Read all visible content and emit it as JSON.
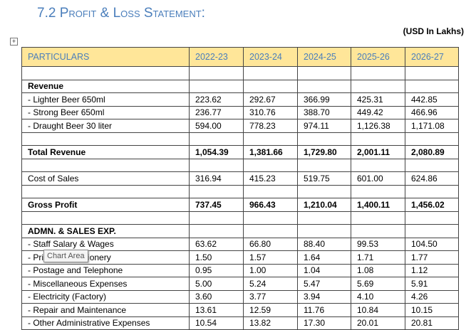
{
  "header": {
    "title": "7.2 Profit & Loss Statement:",
    "unit": "(USD In Lakhs)"
  },
  "tooltip": "Chart Area",
  "table": {
    "columns": [
      "PARTICULARS",
      "2022-23",
      "2023-24",
      "2024-25",
      "2025-26",
      "2026-27"
    ],
    "rows": [
      null,
      {
        "label": "Revenue",
        "bold": true
      },
      {
        "label": "- Lighter Beer 650ml",
        "values": [
          "223.62",
          "292.67",
          "366.99",
          "425.31",
          "442.85"
        ]
      },
      {
        "label": "- Strong Beer 650ml",
        "values": [
          "236.77",
          "310.76",
          "388.70",
          "449.42",
          "466.96"
        ]
      },
      {
        "label": "- Draught Beer 30 liter",
        "values": [
          "594.00",
          "778.23",
          "974.11",
          "1,126.38",
          "1,171.08"
        ]
      },
      null,
      {
        "label": "Total Revenue",
        "bold": true,
        "values": [
          "1,054.39",
          "1,381.66",
          "1,729.80",
          "2,001.11",
          "2,080.89"
        ]
      },
      null,
      {
        "label": "Cost of Sales",
        "values": [
          "316.94",
          "415.23",
          "519.75",
          "601.00",
          "624.86"
        ]
      },
      null,
      {
        "label": "Gross Profit",
        "bold": true,
        "values": [
          "737.45",
          "966.43",
          "1,210.04",
          "1,400.11",
          "1,456.02"
        ]
      },
      null,
      {
        "label": "ADMN. & SALES EXP.",
        "bold": true
      },
      {
        "label": "- Staff Salary & Wages",
        "values": [
          "63.62",
          "66.80",
          "88.40",
          "99.53",
          "104.50"
        ]
      },
      {
        "label": "- Printing & Stationery",
        "values": [
          "1.50",
          "1.57",
          "1.64",
          "1.71",
          "1.77"
        ]
      },
      {
        "label": "- Postage and Telephone",
        "values": [
          "0.95",
          "1.00",
          "1.04",
          "1.08",
          "1.12"
        ]
      },
      {
        "label": "- Miscellaneous Expenses",
        "values": [
          "5.00",
          "5.24",
          "5.47",
          "5.69",
          "5.91"
        ]
      },
      {
        "label": "- Electricity (Factory)",
        "values": [
          "3.60",
          "3.77",
          "3.94",
          "4.10",
          "4.26"
        ]
      },
      {
        "label": "- Repair and Maintenance",
        "values": [
          "13.61",
          "12.59",
          "11.76",
          "10.84",
          "10.15"
        ]
      },
      {
        "label": "- Other Administrative Expenses",
        "values": [
          "10.54",
          "13.82",
          "17.30",
          "20.01",
          "20.81"
        ]
      }
    ]
  }
}
